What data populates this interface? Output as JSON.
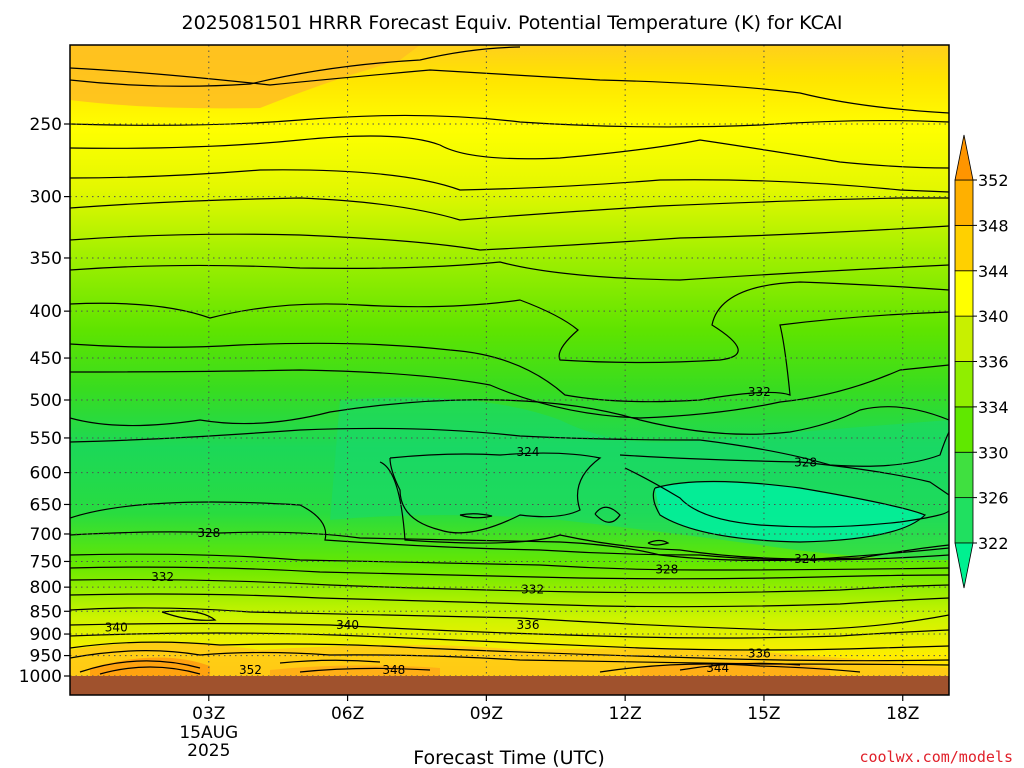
{
  "chart_data": {
    "type": "heatmap",
    "title": "2025081501 HRRR Forecast Equiv. Potential Temperature (K) for KCAI",
    "xlabel": "Forecast Time (UTC)",
    "ylabel": "",
    "x_ticks": [
      {
        "value": 3,
        "label": "03Z",
        "sub": [
          "15AUG",
          "2025"
        ]
      },
      {
        "value": 6,
        "label": "06Z"
      },
      {
        "value": 9,
        "label": "09Z"
      },
      {
        "value": 12,
        "label": "12Z"
      },
      {
        "value": 15,
        "label": "15Z"
      },
      {
        "value": 18,
        "label": "18Z"
      }
    ],
    "xlim": [
      0,
      19
    ],
    "y_ticks": [
      250,
      300,
      350,
      400,
      450,
      500,
      550,
      600,
      650,
      700,
      750,
      800,
      850,
      900,
      950,
      1000
    ],
    "ylim": [
      1000,
      200
    ],
    "y_scale": "log-pressure",
    "grid": true,
    "colorbar": {
      "levels": [
        322,
        326,
        330,
        334,
        336,
        340,
        344,
        348,
        352
      ],
      "labels": [
        "322",
        "326",
        "330",
        "334",
        "336",
        "340",
        "344",
        "348",
        "352"
      ],
      "colors": [
        "#00f090",
        "#20e060",
        "#40e040",
        "#60e800",
        "#90ee00",
        "#c8f000",
        "#ffff00",
        "#ffd000",
        "#ffb000",
        "#ff9500"
      ],
      "extend": "both"
    },
    "contour_labels": [
      {
        "text": "352",
        "x": 3.9,
        "p": 985
      },
      {
        "text": "348",
        "x": 7.0,
        "p": 985
      },
      {
        "text": "344",
        "x": 14.0,
        "p": 980
      },
      {
        "text": "340",
        "x": 1.0,
        "p": 885
      },
      {
        "text": "340",
        "x": 6.0,
        "p": 880
      },
      {
        "text": "336",
        "x": 9.9,
        "p": 880
      },
      {
        "text": "336",
        "x": 14.9,
        "p": 945
      },
      {
        "text": "332",
        "x": 2.0,
        "p": 780
      },
      {
        "text": "332",
        "x": 10.0,
        "p": 805
      },
      {
        "text": "328",
        "x": 3.0,
        "p": 698
      },
      {
        "text": "328",
        "x": 12.9,
        "p": 765
      },
      {
        "text": "328",
        "x": 15.9,
        "p": 585
      },
      {
        "text": "324",
        "x": 9.9,
        "p": 570
      },
      {
        "text": "324",
        "x": 15.9,
        "p": 745
      },
      {
        "text": "332",
        "x": 14.9,
        "p": 490
      }
    ],
    "surface_pressure": 1000
  },
  "credit": "coolwx.com/models"
}
